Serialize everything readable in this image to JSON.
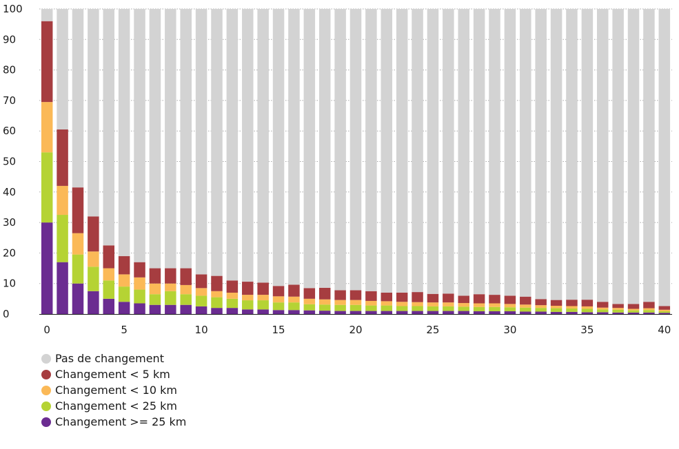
{
  "chart_data": {
    "type": "bar",
    "stacked": true,
    "x": [
      0,
      1,
      2,
      3,
      4,
      5,
      6,
      7,
      8,
      9,
      10,
      11,
      12,
      13,
      14,
      15,
      16,
      17,
      18,
      19,
      20,
      21,
      22,
      23,
      24,
      25,
      26,
      27,
      28,
      29,
      30,
      31,
      32,
      33,
      34,
      35,
      36,
      37,
      38,
      39,
      40
    ],
    "xticks": [
      "0",
      "5",
      "10",
      "15",
      "20",
      "25",
      "30",
      "35",
      "40"
    ],
    "yticks": [
      "0",
      "10",
      "20",
      "30",
      "40",
      "50",
      "60",
      "70",
      "80",
      "90",
      "100"
    ],
    "ylim": [
      0,
      100
    ],
    "grid": true,
    "legend_position": "bottom-left",
    "series": [
      {
        "name": "Changement >= 25 km",
        "color": "#6b2c91",
        "values": [
          30,
          17,
          10,
          7.5,
          5,
          4,
          3.5,
          3,
          3,
          3,
          2.5,
          2,
          2,
          1.5,
          1.5,
          1.3,
          1.3,
          1.2,
          1.1,
          1,
          1,
          1,
          1,
          1,
          1,
          1,
          1,
          1,
          0.9,
          0.9,
          0.9,
          0.8,
          0.8,
          0.7,
          0.7,
          0.6,
          0.6,
          0.5,
          0.5,
          0.5,
          0.4
        ]
      },
      {
        "name": "Changement < 25 km",
        "color": "#b5d334",
        "values": [
          23,
          15.5,
          9.5,
          8,
          6,
          5,
          4.5,
          3.5,
          4.5,
          3.5,
          3.5,
          3.5,
          3,
          3,
          3,
          2.5,
          2.5,
          2,
          2,
          2,
          2,
          1.8,
          1.8,
          1.6,
          1.6,
          1.5,
          1.5,
          1.4,
          1.4,
          1.4,
          1.3,
          1.3,
          1.2,
          1.2,
          1.1,
          1.1,
          0.9,
          0.9,
          0.7,
          0.8,
          0.5
        ]
      },
      {
        "name": "Changement < 10 km",
        "color": "#fbb957",
        "values": [
          16.5,
          9.5,
          7,
          5,
          4,
          4,
          4,
          3.5,
          2.5,
          3,
          2.5,
          2,
          2,
          1.8,
          1.8,
          2,
          1.9,
          1.8,
          1.7,
          1.6,
          1.6,
          1.5,
          1.4,
          1.4,
          1.3,
          1.3,
          1.3,
          1.2,
          1.2,
          1.2,
          1.1,
          1,
          0.9,
          0.8,
          0.8,
          0.8,
          0.6,
          0.6,
          0.5,
          0.6,
          0.5
        ]
      },
      {
        "name": "Changement < 5 km",
        "color": "#a63d40",
        "values": [
          26.5,
          18.5,
          15,
          11.5,
          7.5,
          6,
          5,
          5,
          5,
          5.5,
          4.5,
          5,
          4,
          4.3,
          4,
          3.4,
          3.9,
          3.5,
          3.8,
          3.2,
          3.2,
          3.2,
          2.8,
          3,
          3.3,
          2.8,
          2.9,
          2.4,
          3,
          2.8,
          2.7,
          2.6,
          2,
          1.9,
          2.1,
          2.2,
          1.9,
          1.3,
          1.6,
          2.1,
          1.2
        ]
      },
      {
        "name": "Pas de changement",
        "color": "#d3d3d3",
        "fill_to_total": 100
      }
    ]
  },
  "legend": [
    {
      "label": "Pas de changement",
      "color": "#d3d3d3"
    },
    {
      "label": "Changement < 5 km",
      "color": "#a63d40"
    },
    {
      "label": "Changement < 10 km",
      "color": "#fbb957"
    },
    {
      "label": "Changement < 25 km",
      "color": "#b5d334"
    },
    {
      "label": "Changement >= 25 km",
      "color": "#6b2c91"
    }
  ]
}
